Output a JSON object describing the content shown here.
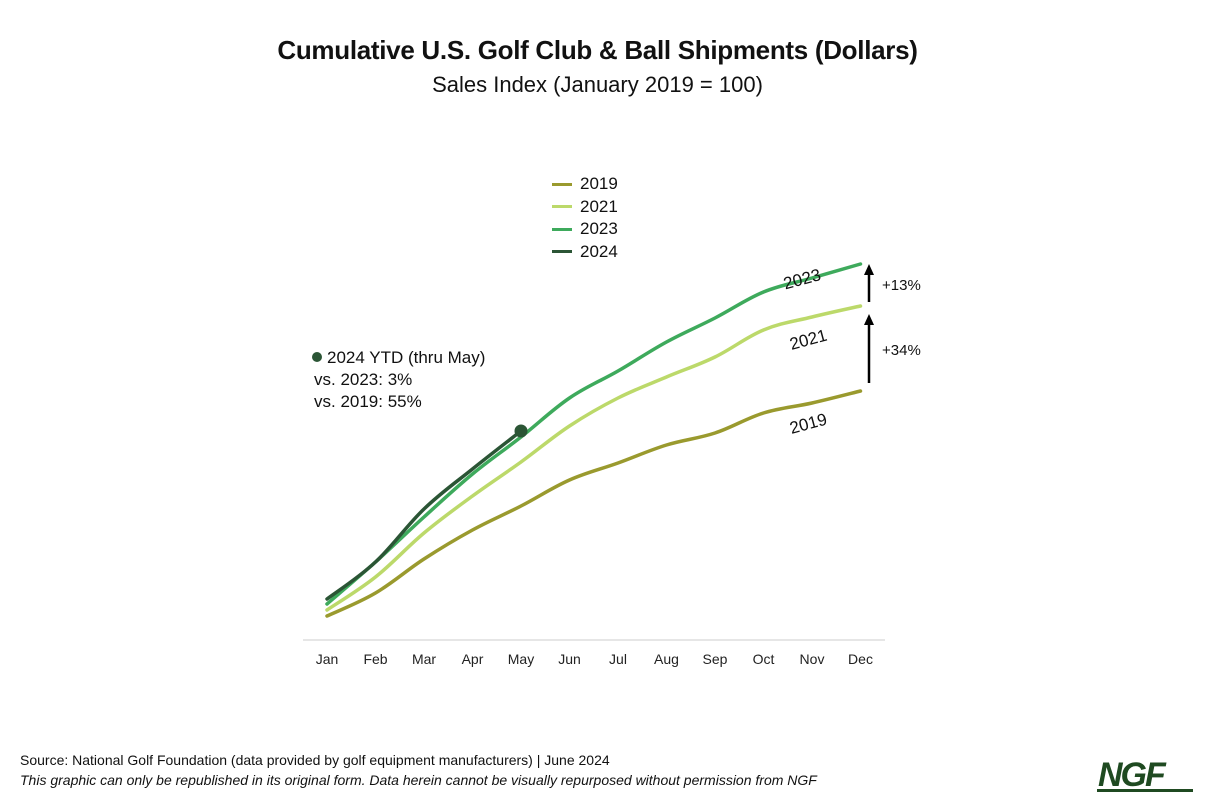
{
  "chart_data": {
    "type": "line",
    "title": "Cumulative U.S. Golf Club & Ball Shipments (Dollars)",
    "subtitle": "Sales Index (January 2019 = 100)",
    "xlabel": "",
    "ylabel": "",
    "categories": [
      "Jan",
      "Feb",
      "Mar",
      "Apr",
      "May",
      "Jun",
      "Jul",
      "Aug",
      "Sep",
      "Oct",
      "Nov",
      "Dec"
    ],
    "ylim": [
      0,
      1600
    ],
    "grid": false,
    "legend_position": "top-center",
    "series": [
      {
        "name": "2019",
        "color": "#9a9a2e",
        "values": [
          100,
          192,
          328,
          444,
          540,
          644,
          712,
          784,
          832,
          912,
          952,
          1000
        ]
      },
      {
        "name": "2021",
        "color": "#bcd96a",
        "values": [
          124,
          256,
          432,
          580,
          716,
          860,
          972,
          1056,
          1136,
          1244,
          1296,
          1340
        ]
      },
      {
        "name": "2023",
        "color": "#3eaa5c",
        "values": [
          148,
          316,
          496,
          668,
          816,
          972,
          1080,
          1196,
          1292,
          1396,
          1452,
          1508
        ]
      },
      {
        "name": "2024",
        "color": "#2b5535",
        "values": [
          168,
          316,
          528,
          688,
          840
        ]
      }
    ],
    "annotations": {
      "ytd_title": "2024 YTD (thru May)",
      "ytd_vs_2023": "vs. 2023: 3%",
      "ytd_vs_2019": "vs. 2019: 55%",
      "line_label_2023": "2023",
      "line_label_2021": "2021",
      "line_label_2019": "2019",
      "arrow_2021_to_2023": "+13%",
      "arrow_2019_to_2021": "+34%"
    }
  },
  "footer": {
    "source": "Source: National Golf Foundation (data provided by golf equipment manufacturers) | June 2024",
    "disclaimer": "This graphic can only be republished in its original form. Data herein cannot be visually repurposed without permission from NGF",
    "logo": "NGF"
  }
}
